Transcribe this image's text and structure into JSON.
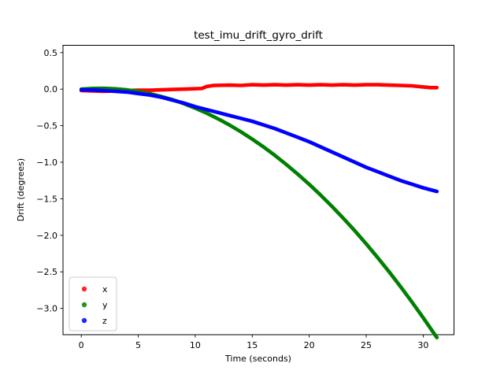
{
  "chart_data": {
    "type": "line",
    "title": "test_imu_drift_gyro_drift",
    "xlabel": "Time (seconds)",
    "ylabel": "Drift (degrees)",
    "xlim": [
      -1.6,
      32.7
    ],
    "ylim": [
      -3.36,
      0.6
    ],
    "grid": false,
    "x_ticks": [
      {
        "v": 0,
        "label": "0"
      },
      {
        "v": 5,
        "label": "5"
      },
      {
        "v": 10,
        "label": "10"
      },
      {
        "v": 15,
        "label": "15"
      },
      {
        "v": 20,
        "label": "20"
      },
      {
        "v": 25,
        "label": "25"
      },
      {
        "v": 30,
        "label": "30"
      }
    ],
    "y_ticks": [
      {
        "v": 0.5,
        "label": "0.5"
      },
      {
        "v": 0.0,
        "label": "0.0"
      },
      {
        "v": -0.5,
        "label": "−0.5"
      },
      {
        "v": -1.0,
        "label": "−1.0"
      },
      {
        "v": -1.5,
        "label": "−1.5"
      },
      {
        "v": -2.0,
        "label": "−2.0"
      },
      {
        "v": -2.5,
        "label": "−2.5"
      },
      {
        "v": -3.0,
        "label": "−3.0"
      }
    ],
    "legend": {
      "position": "lower left",
      "entries": [
        {
          "label": "x",
          "color": "#ff0000"
        },
        {
          "label": "y",
          "color": "#008000"
        },
        {
          "label": "z",
          "color": "#0000ff"
        }
      ]
    },
    "series": [
      {
        "name": "x",
        "color": "#ff0000",
        "points": [
          [
            0,
            -0.02
          ],
          [
            1,
            -0.025
          ],
          [
            2,
            -0.03
          ],
          [
            3,
            -0.025
          ],
          [
            4,
            -0.02
          ],
          [
            5,
            -0.015
          ],
          [
            6,
            -0.015
          ],
          [
            7,
            -0.01
          ],
          [
            8,
            -0.005
          ],
          [
            9,
            0.0
          ],
          [
            10,
            0.005
          ],
          [
            10.6,
            0.01
          ],
          [
            11.0,
            0.035
          ],
          [
            11.6,
            0.05
          ],
          [
            13,
            0.055
          ],
          [
            14,
            0.05
          ],
          [
            15,
            0.06
          ],
          [
            16,
            0.055
          ],
          [
            17,
            0.06
          ],
          [
            18,
            0.055
          ],
          [
            19,
            0.06
          ],
          [
            20,
            0.055
          ],
          [
            21,
            0.06
          ],
          [
            22,
            0.055
          ],
          [
            23,
            0.06
          ],
          [
            24,
            0.055
          ],
          [
            25,
            0.06
          ],
          [
            26,
            0.06
          ],
          [
            27,
            0.055
          ],
          [
            28,
            0.05
          ],
          [
            29,
            0.045
          ],
          [
            30,
            0.03
          ],
          [
            30.7,
            0.02
          ],
          [
            31.2,
            0.02
          ]
        ]
      },
      {
        "name": "y",
        "color": "#008000",
        "points": [
          [
            0,
            0.0
          ],
          [
            1,
            0.009
          ],
          [
            2,
            0.011
          ],
          [
            3,
            0.004
          ],
          [
            4,
            -0.01
          ],
          [
            5,
            -0.032
          ],
          [
            6,
            -0.062
          ],
          [
            7,
            -0.1
          ],
          [
            8,
            -0.145
          ],
          [
            9,
            -0.199
          ],
          [
            10,
            -0.26
          ],
          [
            11,
            -0.329
          ],
          [
            12,
            -0.406
          ],
          [
            13,
            -0.49
          ],
          [
            14,
            -0.583
          ],
          [
            15,
            -0.684
          ],
          [
            16,
            -0.792
          ],
          [
            17,
            -0.908
          ],
          [
            18,
            -1.032
          ],
          [
            19,
            -1.164
          ],
          [
            20,
            -1.303
          ],
          [
            21,
            -1.45
          ],
          [
            22,
            -1.605
          ],
          [
            23,
            -1.768
          ],
          [
            24,
            -1.939
          ],
          [
            25,
            -2.117
          ],
          [
            26,
            -2.304
          ],
          [
            27,
            -2.498
          ],
          [
            28,
            -2.7
          ],
          [
            29,
            -2.91
          ],
          [
            30,
            -3.128
          ],
          [
            31.2,
            -3.4
          ]
        ]
      },
      {
        "name": "z",
        "color": "#0000ff",
        "points": [
          [
            0,
            -0.01
          ],
          [
            1,
            -0.012
          ],
          [
            2,
            -0.02
          ],
          [
            3,
            -0.03
          ],
          [
            4,
            -0.04
          ],
          [
            5,
            -0.06
          ],
          [
            6,
            -0.08
          ],
          [
            7,
            -0.11
          ],
          [
            8,
            -0.15
          ],
          [
            9,
            -0.19
          ],
          [
            10,
            -0.24
          ],
          [
            11,
            -0.28
          ],
          [
            12,
            -0.32
          ],
          [
            13,
            -0.36
          ],
          [
            14,
            -0.4
          ],
          [
            15,
            -0.44
          ],
          [
            16,
            -0.49
          ],
          [
            17,
            -0.54
          ],
          [
            18,
            -0.6
          ],
          [
            19,
            -0.66
          ],
          [
            20,
            -0.72
          ],
          [
            21,
            -0.79
          ],
          [
            22,
            -0.86
          ],
          [
            23,
            -0.93
          ],
          [
            24,
            -1.0
          ],
          [
            25,
            -1.07
          ],
          [
            26,
            -1.13
          ],
          [
            27,
            -1.19
          ],
          [
            28,
            -1.25
          ],
          [
            29,
            -1.3
          ],
          [
            30,
            -1.35
          ],
          [
            31.2,
            -1.4
          ]
        ]
      }
    ]
  }
}
